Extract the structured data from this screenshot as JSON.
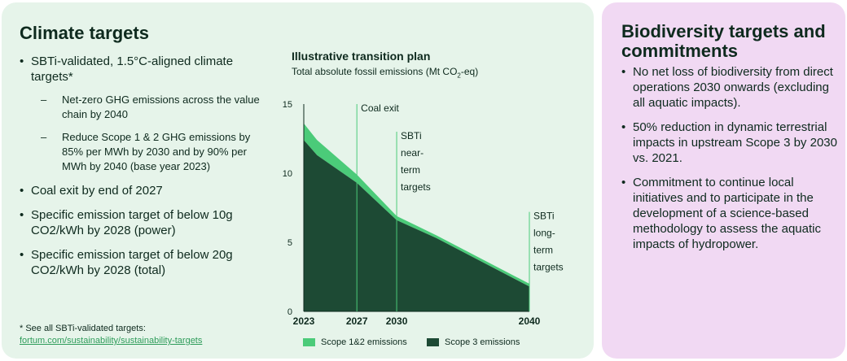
{
  "climate": {
    "title": "Climate targets",
    "bullets": [
      {
        "text": "SBTi-validated, 1.5°C-aligned climate targets*",
        "sub": [
          "Net-zero GHG emissions across the value chain by 2040",
          "Reduce Scope 1 & 2  GHG emissions by 85% per MWh by 2030 and by 90% per MWh by 2040 (base year 2023)"
        ]
      },
      {
        "text": "Coal exit by end of 2027"
      },
      {
        "text": "Specific emission target of below 10g CO2/kWh by 2028 (power)"
      },
      {
        "text": "Specific emission target of below 20g CO2/kWh by 2028 (total)"
      }
    ],
    "footnote": "* See all SBTi-validated targets:",
    "footnote_link": "fortum.com/sustainability/sustainability-targets"
  },
  "biodiversity": {
    "title": "Biodiversity targets and commitments",
    "bullets": [
      "No net loss of biodiversity from direct operations 2030 onwards (excluding all aquatic impacts).",
      "50% reduction in dynamic terrestrial impacts in upstream Scope 3 by 2030 vs. 2021.",
      "Commitment to continue local initiatives and to participate in the development of a science-based methodology to assess the aquatic impacts of hydropower."
    ]
  },
  "chart_data": {
    "type": "area",
    "title": "Illustrative transition plan",
    "subtitle_main": "Total absolute fossil emissions (Mt CO",
    "subtitle_sub": "2",
    "subtitle_end": "-eq)",
    "x": [
      2023,
      2024,
      2027,
      2030,
      2033,
      2040
    ],
    "xticks": [
      2023,
      2027,
      2030,
      2040
    ],
    "ylim": [
      0,
      15
    ],
    "yticks": [
      0,
      5,
      10,
      15
    ],
    "grid": false,
    "series": [
      {
        "name": "Scope 3 emissions",
        "values": [
          12.4,
          11.3,
          9.3,
          6.6,
          5.3,
          1.8
        ],
        "color": "#1d4a34"
      },
      {
        "name": "Scope 1&2 emissions",
        "values": [
          1.2,
          1.1,
          0.6,
          0.3,
          0.2,
          0.2
        ],
        "color": "#4bcb79"
      }
    ],
    "annotations": [
      {
        "x": 2027,
        "label": [
          "Coal exit"
        ],
        "top": 15
      },
      {
        "x": 2030,
        "label": [
          "SBTi",
          "near-",
          "term",
          "targets"
        ],
        "top": 13
      },
      {
        "x": 2040,
        "label": [
          "SBTi",
          "long-",
          "term",
          "targets"
        ],
        "top": 7.2
      }
    ],
    "legend": "bottom"
  }
}
